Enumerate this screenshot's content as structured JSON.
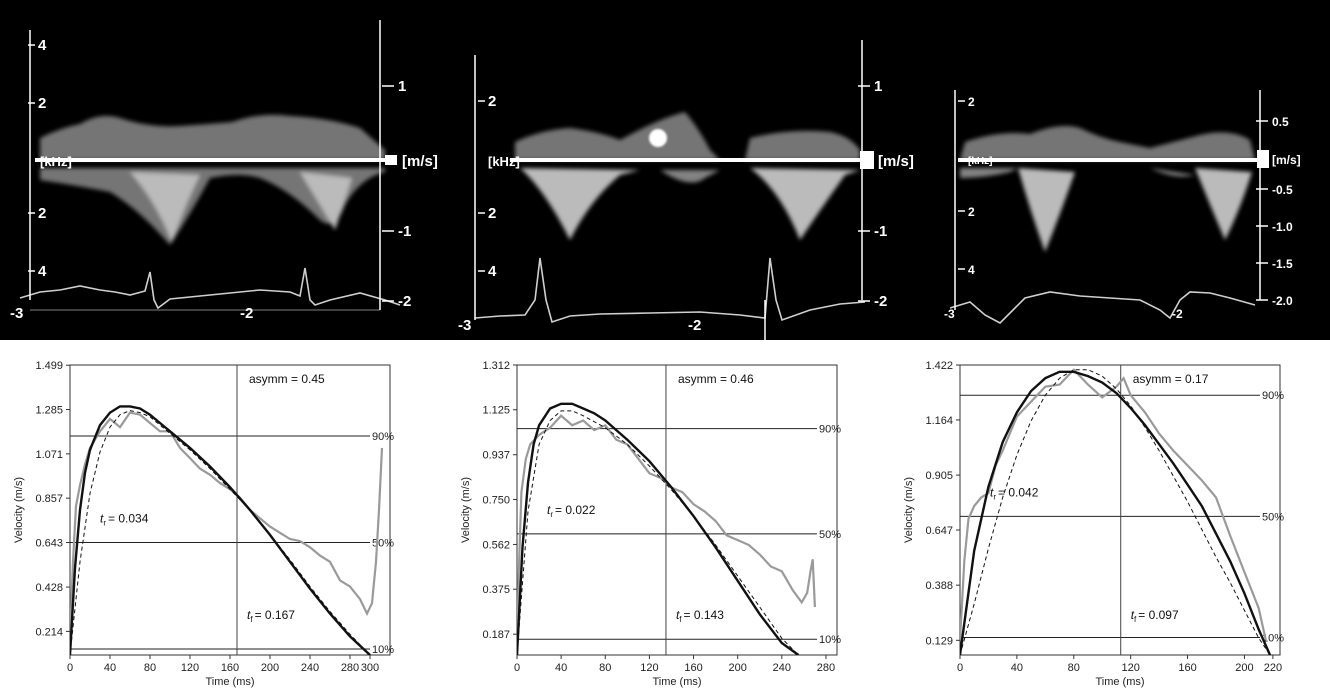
{
  "doppler_panels": [
    {
      "left_ticks": [
        "4",
        "2",
        "2",
        "4"
      ],
      "right_ticks": [
        "1",
        "-1",
        "-2"
      ],
      "bottom_ticks": [
        "-3",
        "-2"
      ],
      "freq_label": "[kHz]",
      "vel_label": "[m/s]"
    },
    {
      "left_ticks": [
        "2",
        "2",
        "4"
      ],
      "right_ticks": [
        "1",
        "-1",
        "-2"
      ],
      "bottom_ticks": [
        "-3",
        "-2"
      ],
      "freq_label": "[kHz]",
      "vel_label": "[m/s]"
    },
    {
      "left_ticks": [
        "2",
        "2",
        "4"
      ],
      "right_ticks": [
        "0.5",
        "-0.5",
        "-1.0",
        "-1.5",
        "-2.0"
      ],
      "bottom_ticks": [
        "-3",
        "-2"
      ],
      "freq_label": "[kHz]",
      "vel_label": "[m/s]"
    }
  ],
  "chart_data": [
    {
      "type": "line",
      "xlabel": "Time (ms)",
      "ylabel": "Velocity (m/s)",
      "xlim": [
        0,
        320
      ],
      "ylim": [
        0.1,
        1.5
      ],
      "xticks": [
        "0",
        "40",
        "80",
        "120",
        "160",
        "200",
        "240",
        "280",
        "300"
      ],
      "yticks": [
        "0.214",
        "0.428",
        "0.643",
        "0.857",
        "1.071",
        "1.285",
        "1.499"
      ],
      "asymm_label": "asymm = 0.45",
      "asymm_x": 167,
      "tr_label": "= 0.034",
      "tf_label": "= 0.167",
      "levels": [
        {
          "label": "90%",
          "value": 1.157
        },
        {
          "label": "50%",
          "value": 0.643
        },
        {
          "label": "10%",
          "value": 0.129
        }
      ],
      "series": [
        {
          "style": "measured",
          "x": [
            0,
            3,
            6,
            10,
            15,
            20,
            30,
            40,
            50,
            60,
            70,
            80,
            90,
            100,
            110,
            120,
            130,
            140,
            150,
            160,
            170,
            180,
            190,
            200,
            210,
            220,
            230,
            240,
            250,
            260,
            270,
            280,
            290,
            297,
            302,
            306,
            309,
            312
          ],
          "y": [
            0.18,
            0.55,
            0.82,
            0.92,
            1.02,
            1.1,
            1.18,
            1.24,
            1.2,
            1.27,
            1.26,
            1.22,
            1.18,
            1.18,
            1.1,
            1.05,
            1.0,
            0.97,
            0.93,
            0.9,
            0.86,
            0.8,
            0.76,
            0.72,
            0.69,
            0.66,
            0.65,
            0.62,
            0.58,
            0.55,
            0.46,
            0.43,
            0.37,
            0.3,
            0.35,
            0.55,
            0.8,
            1.1
          ]
        },
        {
          "style": "fit",
          "x": [
            0,
            5,
            10,
            15,
            20,
            30,
            40,
            50,
            60,
            70,
            80,
            90,
            100,
            120,
            140,
            160,
            180,
            200,
            220,
            240,
            260,
            280,
            300
          ],
          "y": [
            0.1,
            0.52,
            0.8,
            0.98,
            1.09,
            1.21,
            1.27,
            1.3,
            1.3,
            1.29,
            1.26,
            1.22,
            1.18,
            1.1,
            1.01,
            0.91,
            0.8,
            0.68,
            0.55,
            0.42,
            0.3,
            0.19,
            0.1
          ]
        },
        {
          "style": "model",
          "x": [
            0,
            10,
            20,
            30,
            40,
            50,
            60,
            70,
            80,
            90,
            100,
            120,
            140,
            160,
            180,
            200,
            220,
            240,
            260,
            280,
            300
          ],
          "y": [
            0.1,
            0.55,
            0.88,
            1.08,
            1.2,
            1.26,
            1.28,
            1.27,
            1.25,
            1.21,
            1.17,
            1.09,
            1.0,
            0.9,
            0.8,
            0.68,
            0.56,
            0.43,
            0.31,
            0.2,
            0.1
          ]
        }
      ]
    },
    {
      "type": "line",
      "xlabel": "Time (ms)",
      "ylabel": "Velocity (m/s)",
      "xlim": [
        0,
        290
      ],
      "ylim": [
        0.1,
        1.312
      ],
      "xticks": [
        "0",
        "40",
        "80",
        "120",
        "160",
        "200",
        "240",
        "280"
      ],
      "yticks": [
        "0.187",
        "0.375",
        "0.562",
        "0.750",
        "0.937",
        "1.125",
        "1.312"
      ],
      "asymm_label": "asymm = 0.46",
      "asymm_x": 135,
      "tr_label": "= 0.022",
      "tf_label": "= 0.143",
      "levels": [
        {
          "label": "90%",
          "value": 1.046
        },
        {
          "label": "50%",
          "value": 0.606
        },
        {
          "label": "10%",
          "value": 0.166
        }
      ],
      "series": [
        {
          "style": "measured",
          "x": [
            0,
            2,
            4,
            8,
            12,
            20,
            30,
            40,
            50,
            60,
            70,
            80,
            90,
            100,
            110,
            120,
            130,
            140,
            150,
            160,
            170,
            180,
            190,
            200,
            210,
            220,
            230,
            240,
            250,
            258,
            263,
            266,
            268,
            270
          ],
          "y": [
            0.15,
            0.5,
            0.78,
            0.92,
            0.98,
            1.02,
            1.05,
            1.1,
            1.06,
            1.08,
            1.04,
            1.06,
            1.0,
            0.98,
            0.92,
            0.86,
            0.84,
            0.8,
            0.78,
            0.73,
            0.7,
            0.66,
            0.6,
            0.58,
            0.56,
            0.52,
            0.47,
            0.45,
            0.37,
            0.32,
            0.36,
            0.45,
            0.5,
            0.3
          ]
        },
        {
          "style": "fit",
          "x": [
            0,
            5,
            10,
            15,
            20,
            30,
            40,
            50,
            60,
            70,
            80,
            90,
            100,
            120,
            140,
            160,
            180,
            200,
            220,
            240,
            255
          ],
          "y": [
            0.1,
            0.55,
            0.82,
            0.98,
            1.06,
            1.13,
            1.15,
            1.15,
            1.13,
            1.11,
            1.08,
            1.04,
            1.0,
            0.91,
            0.8,
            0.68,
            0.55,
            0.41,
            0.27,
            0.15,
            0.1
          ]
        },
        {
          "style": "model",
          "x": [
            0,
            10,
            20,
            30,
            40,
            50,
            60,
            80,
            100,
            120,
            140,
            160,
            180,
            200,
            220,
            240,
            255
          ],
          "y": [
            0.1,
            0.7,
            0.98,
            1.08,
            1.12,
            1.12,
            1.1,
            1.05,
            0.98,
            0.89,
            0.79,
            0.68,
            0.56,
            0.43,
            0.3,
            0.17,
            0.1
          ]
        }
      ]
    },
    {
      "type": "line",
      "xlabel": "Time (ms)",
      "ylabel": "Velocity (m/s)",
      "xlim": [
        0,
        225
      ],
      "ylim": [
        0.06,
        1.422
      ],
      "xticks": [
        "0",
        "40",
        "80",
        "120",
        "160",
        "200",
        "220"
      ],
      "yticks": [
        "0.129",
        "0.388",
        "0.647",
        "0.905",
        "1.164",
        "1.422"
      ],
      "asymm_label": "asymm = 0.17",
      "asymm_x": 113,
      "tr_label": "= 0.042",
      "tf_label": "= 0.097",
      "levels": [
        {
          "label": "90%",
          "value": 1.28
        },
        {
          "label": "50%",
          "value": 0.711
        },
        {
          "label": "10%",
          "value": 0.142
        }
      ],
      "series": [
        {
          "style": "measured",
          "x": [
            0,
            3,
            6,
            10,
            15,
            20,
            25,
            30,
            40,
            50,
            60,
            70,
            80,
            90,
            100,
            110,
            115,
            120,
            130,
            140,
            150,
            160,
            170,
            180,
            190,
            200,
            210,
            215
          ],
          "y": [
            0.13,
            0.5,
            0.7,
            0.76,
            0.8,
            0.82,
            0.95,
            1.02,
            1.18,
            1.25,
            1.32,
            1.33,
            1.4,
            1.33,
            1.27,
            1.32,
            1.36,
            1.28,
            1.2,
            1.1,
            1.02,
            0.95,
            0.88,
            0.8,
            0.62,
            0.45,
            0.28,
            0.13
          ]
        },
        {
          "style": "fit",
          "x": [
            0,
            10,
            20,
            30,
            40,
            50,
            60,
            70,
            80,
            90,
            100,
            110,
            120,
            130,
            140,
            150,
            160,
            170,
            180,
            190,
            200,
            210,
            218
          ],
          "y": [
            0.06,
            0.55,
            0.85,
            1.06,
            1.2,
            1.3,
            1.36,
            1.39,
            1.39,
            1.37,
            1.34,
            1.29,
            1.22,
            1.14,
            1.05,
            0.96,
            0.86,
            0.76,
            0.63,
            0.5,
            0.35,
            0.18,
            0.06
          ]
        },
        {
          "style": "model",
          "x": [
            0,
            10,
            20,
            30,
            40,
            50,
            60,
            70,
            80,
            90,
            100,
            110,
            120,
            130,
            140,
            150,
            160,
            170,
            180,
            190,
            200,
            210,
            218
          ],
          "y": [
            0.06,
            0.3,
            0.56,
            0.8,
            1.0,
            1.16,
            1.28,
            1.36,
            1.4,
            1.4,
            1.37,
            1.31,
            1.23,
            1.13,
            1.02,
            0.9,
            0.78,
            0.65,
            0.52,
            0.4,
            0.27,
            0.14,
            0.06
          ]
        }
      ]
    }
  ]
}
